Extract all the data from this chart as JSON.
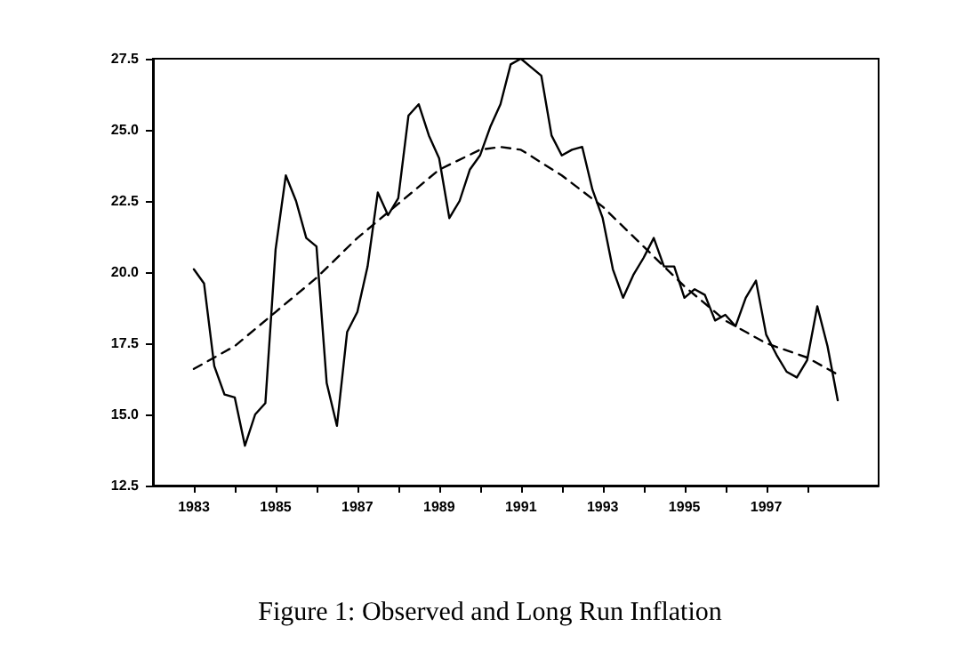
{
  "chart_data": {
    "type": "line",
    "title": "Figure 1: Observed and Long Run Inflation",
    "xlim": [
      1982,
      1999.75
    ],
    "ylim": [
      12.5,
      27.5
    ],
    "xticks": [
      {
        "value": 1983,
        "label": "1983"
      },
      {
        "value": 1984,
        "label": null
      },
      {
        "value": 1985,
        "label": "1985"
      },
      {
        "value": 1986,
        "label": null
      },
      {
        "value": 1987,
        "label": "1987"
      },
      {
        "value": 1988,
        "label": null
      },
      {
        "value": 1989,
        "label": "1989"
      },
      {
        "value": 1990,
        "label": null
      },
      {
        "value": 1991,
        "label": "1991"
      },
      {
        "value": 1992,
        "label": null
      },
      {
        "value": 1993,
        "label": "1993"
      },
      {
        "value": 1994,
        "label": null
      },
      {
        "value": 1995,
        "label": "1995"
      },
      {
        "value": 1996,
        "label": null
      },
      {
        "value": 1997,
        "label": "1997"
      },
      {
        "value": 1998,
        "label": null
      }
    ],
    "yticks": [
      {
        "value": 12.5,
        "label": "12.5"
      },
      {
        "value": 15,
        "label": "15.0"
      },
      {
        "value": 17.5,
        "label": "17.5"
      },
      {
        "value": 20,
        "label": "20.0"
      },
      {
        "value": 22.5,
        "label": "22.5"
      },
      {
        "value": 25,
        "label": "25.0"
      },
      {
        "value": 27.5,
        "label": "27.5"
      }
    ],
    "grid": false,
    "marker": "none",
    "series": [
      {
        "color": "#000000",
        "line_style": "solid",
        "x": [
          1983,
          1983.25,
          1983.5,
          1983.75,
          1984,
          1984.25,
          1984.5,
          1984.75,
          1985,
          1985.25,
          1985.5,
          1985.75,
          1986,
          1986.25,
          1986.5,
          1986.75,
          1987,
          1987.25,
          1987.5,
          1987.75,
          1988,
          1988.25,
          1988.5,
          1988.75,
          1989,
          1989.25,
          1989.5,
          1989.75,
          1990,
          1990.25,
          1990.5,
          1990.75,
          1991,
          1991.25,
          1991.5,
          1991.75,
          1992,
          1992.25,
          1992.5,
          1992.75,
          1993,
          1993.25,
          1993.5,
          1993.75,
          1994,
          1994.25,
          1994.5,
          1994.75,
          1995,
          1995.25,
          1995.5,
          1995.75,
          1996,
          1996.25,
          1996.5,
          1996.75,
          1997,
          1997.25,
          1997.5,
          1997.75,
          1998,
          1998.25,
          1998.5,
          1998.75
        ],
        "values": [
          20.1,
          19.6,
          16.7,
          15.7,
          15.6,
          13.9,
          15.0,
          15.4,
          20.8,
          23.4,
          22.5,
          21.2,
          20.9,
          16.1,
          14.6,
          17.9,
          18.6,
          20.2,
          22.8,
          22.0,
          22.6,
          25.5,
          25.9,
          24.8,
          24.0,
          21.9,
          22.5,
          23.6,
          24.1,
          25.1,
          25.9,
          27.3,
          27.5,
          27.2,
          26.9,
          24.8,
          24.1,
          24.3,
          24.4,
          22.9,
          21.9,
          20.1,
          19.1,
          19.9,
          20.5,
          21.2,
          20.2,
          20.2,
          19.1,
          19.4,
          19.2,
          18.3,
          18.5,
          18.1,
          19.1,
          19.7,
          17.8,
          17.1,
          16.5,
          16.3,
          16.9,
          18.8,
          17.4,
          15.5
        ]
      },
      {
        "color": "#000000",
        "line_style": "dashed",
        "x": [
          1983,
          1984,
          1985,
          1986,
          1987,
          1988,
          1989,
          1990,
          1990.5,
          1991,
          1992,
          1993,
          1994,
          1995,
          1996,
          1997,
          1998,
          1998.75
        ],
        "values": [
          16.6,
          17.4,
          18.6,
          19.8,
          21.2,
          22.4,
          23.6,
          24.3,
          24.4,
          24.3,
          23.4,
          22.3,
          20.9,
          19.5,
          18.3,
          17.5,
          17.0,
          16.4
        ]
      }
    ]
  }
}
